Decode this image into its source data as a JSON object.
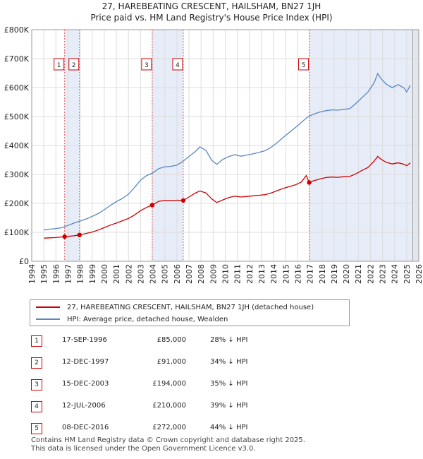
{
  "title_line1": "27, HAREBEATING CRESCENT, HAILSHAM, BN27 1JH",
  "title_line2": "Price paid vs. HM Land Registry's House Price Index (HPI)",
  "chart_data": {
    "type": "line",
    "xlim": [
      1994,
      2026
    ],
    "ylim": [
      0,
      800000
    ],
    "y_ticks": [
      0,
      100000,
      200000,
      300000,
      400000,
      500000,
      600000,
      700000,
      800000
    ],
    "y_tick_labels": [
      "£0",
      "£100K",
      "£200K",
      "£300K",
      "£400K",
      "£500K",
      "£600K",
      "£700K",
      "£800K"
    ],
    "x_ticks": [
      1994,
      1995,
      1996,
      1997,
      1998,
      1999,
      2000,
      2001,
      2002,
      2003,
      2004,
      2005,
      2006,
      2007,
      2008,
      2009,
      2010,
      2011,
      2012,
      2013,
      2014,
      2015,
      2016,
      2017,
      2018,
      2019,
      2020,
      2021,
      2022,
      2023,
      2024,
      2025,
      2026
    ],
    "data_start": 1995.0,
    "data_end": 2025.5,
    "grid": true,
    "series": [
      {
        "name": "27, HAREBEATING CRESCENT, HAILSHAM, BN27 1JH (detached house)",
        "color": "#cc0000",
        "points": [
          [
            1995.0,
            80000
          ],
          [
            1995.5,
            81000
          ],
          [
            1996.0,
            82000
          ],
          [
            1996.72,
            85000
          ],
          [
            1997.0,
            86000
          ],
          [
            1997.5,
            88000
          ],
          [
            1997.95,
            91000
          ],
          [
            1998.5,
            96000
          ],
          [
            1999.0,
            101000
          ],
          [
            1999.5,
            108000
          ],
          [
            2000.0,
            116000
          ],
          [
            2000.5,
            125000
          ],
          [
            2001.0,
            132000
          ],
          [
            2001.5,
            140000
          ],
          [
            2002.0,
            148000
          ],
          [
            2002.5,
            160000
          ],
          [
            2003.0,
            175000
          ],
          [
            2003.5,
            186000
          ],
          [
            2003.96,
            194000
          ],
          [
            2004.5,
            207000
          ],
          [
            2005.0,
            210000
          ],
          [
            2005.5,
            209000
          ],
          [
            2006.0,
            211000
          ],
          [
            2006.53,
            210000
          ],
          [
            2007.0,
            222000
          ],
          [
            2007.5,
            235000
          ],
          [
            2007.9,
            243000
          ],
          [
            2008.4,
            236000
          ],
          [
            2008.9,
            215000
          ],
          [
            2009.3,
            203000
          ],
          [
            2009.8,
            212000
          ],
          [
            2010.3,
            220000
          ],
          [
            2010.8,
            225000
          ],
          [
            2011.3,
            222000
          ],
          [
            2011.8,
            224000
          ],
          [
            2012.3,
            226000
          ],
          [
            2012.8,
            228000
          ],
          [
            2013.3,
            230000
          ],
          [
            2013.8,
            236000
          ],
          [
            2014.3,
            244000
          ],
          [
            2014.8,
            252000
          ],
          [
            2015.3,
            258000
          ],
          [
            2015.8,
            264000
          ],
          [
            2016.3,
            274000
          ],
          [
            2016.7,
            296000
          ],
          [
            2016.94,
            272000
          ],
          [
            2017.3,
            278000
          ],
          [
            2017.8,
            284000
          ],
          [
            2018.3,
            289000
          ],
          [
            2018.8,
            291000
          ],
          [
            2019.3,
            290000
          ],
          [
            2019.8,
            292000
          ],
          [
            2020.3,
            293000
          ],
          [
            2020.8,
            302000
          ],
          [
            2021.3,
            314000
          ],
          [
            2021.8,
            324000
          ],
          [
            2022.3,
            345000
          ],
          [
            2022.6,
            362000
          ],
          [
            2022.9,
            352000
          ],
          [
            2023.3,
            342000
          ],
          [
            2023.8,
            336000
          ],
          [
            2024.3,
            340000
          ],
          [
            2024.8,
            335000
          ],
          [
            2025.0,
            330000
          ],
          [
            2025.3,
            340000
          ]
        ]
      },
      {
        "name": "HPI: Average price, detached house, Wealden",
        "color": "#5b87c0",
        "points": [
          [
            1995.0,
            108000
          ],
          [
            1995.5,
            111000
          ],
          [
            1996.0,
            113000
          ],
          [
            1996.5,
            116000
          ],
          [
            1997.0,
            124000
          ],
          [
            1997.5,
            132000
          ],
          [
            1998.0,
            139000
          ],
          [
            1998.5,
            146000
          ],
          [
            1999.0,
            155000
          ],
          [
            1999.5,
            165000
          ],
          [
            2000.0,
            178000
          ],
          [
            2000.5,
            193000
          ],
          [
            2001.0,
            206000
          ],
          [
            2001.5,
            217000
          ],
          [
            2002.0,
            232000
          ],
          [
            2002.5,
            255000
          ],
          [
            2003.0,
            280000
          ],
          [
            2003.5,
            296000
          ],
          [
            2004.0,
            305000
          ],
          [
            2004.5,
            320000
          ],
          [
            2005.0,
            326000
          ],
          [
            2005.5,
            328000
          ],
          [
            2006.0,
            332000
          ],
          [
            2006.5,
            345000
          ],
          [
            2007.0,
            362000
          ],
          [
            2007.5,
            378000
          ],
          [
            2007.9,
            395000
          ],
          [
            2008.4,
            383000
          ],
          [
            2008.9,
            348000
          ],
          [
            2009.3,
            335000
          ],
          [
            2009.8,
            352000
          ],
          [
            2010.3,
            362000
          ],
          [
            2010.8,
            368000
          ],
          [
            2011.3,
            363000
          ],
          [
            2011.8,
            367000
          ],
          [
            2012.3,
            371000
          ],
          [
            2012.8,
            376000
          ],
          [
            2013.3,
            382000
          ],
          [
            2013.8,
            394000
          ],
          [
            2014.3,
            410000
          ],
          [
            2014.8,
            428000
          ],
          [
            2015.3,
            445000
          ],
          [
            2015.8,
            462000
          ],
          [
            2016.3,
            480000
          ],
          [
            2016.8,
            498000
          ],
          [
            2017.3,
            508000
          ],
          [
            2017.8,
            515000
          ],
          [
            2018.3,
            520000
          ],
          [
            2018.8,
            523000
          ],
          [
            2019.3,
            522000
          ],
          [
            2019.8,
            525000
          ],
          [
            2020.3,
            527000
          ],
          [
            2020.8,
            545000
          ],
          [
            2021.3,
            565000
          ],
          [
            2021.8,
            585000
          ],
          [
            2022.3,
            615000
          ],
          [
            2022.6,
            648000
          ],
          [
            2022.9,
            630000
          ],
          [
            2023.3,
            612000
          ],
          [
            2023.8,
            600000
          ],
          [
            2024.3,
            610000
          ],
          [
            2024.8,
            598000
          ],
          [
            2025.0,
            585000
          ],
          [
            2025.3,
            608000
          ]
        ]
      }
    ],
    "sales": [
      {
        "id": "1",
        "x": 1996.72,
        "price": 85000,
        "date": "17-SEP-1996",
        "price_label": "£85,000",
        "hpi": "28% ↓ HPI"
      },
      {
        "id": "2",
        "x": 1997.95,
        "price": 91000,
        "date": "12-DEC-1997",
        "price_label": "£91,000",
        "hpi": "34% ↓ HPI"
      },
      {
        "id": "3",
        "x": 2003.96,
        "price": 194000,
        "date": "15-DEC-2003",
        "price_label": "£194,000",
        "hpi": "35% ↓ HPI"
      },
      {
        "id": "4",
        "x": 2006.53,
        "price": 210000,
        "date": "12-JUL-2006",
        "price_label": "£210,000",
        "hpi": "39% ↓ HPI"
      },
      {
        "id": "5",
        "x": 2016.94,
        "price": 272000,
        "date": "08-DEC-2016",
        "price_label": "£272,000",
        "hpi": "44% ↓ HPI"
      }
    ],
    "shaded_ranges": [
      [
        1996.72,
        1997.95
      ],
      [
        2003.96,
        2006.53
      ],
      [
        2016.94,
        2026
      ]
    ]
  },
  "legend": {
    "property_label": "27, HAREBEATING CRESCENT, HAILSHAM, BN27 1JH (detached house)",
    "hpi_label": "HPI: Average price, detached house, Wealden"
  },
  "footer_line1": "Contains HM Land Registry data © Crown copyright and database right 2025.",
  "footer_line2": "This data is licensed under the Open Government Licence v3.0."
}
